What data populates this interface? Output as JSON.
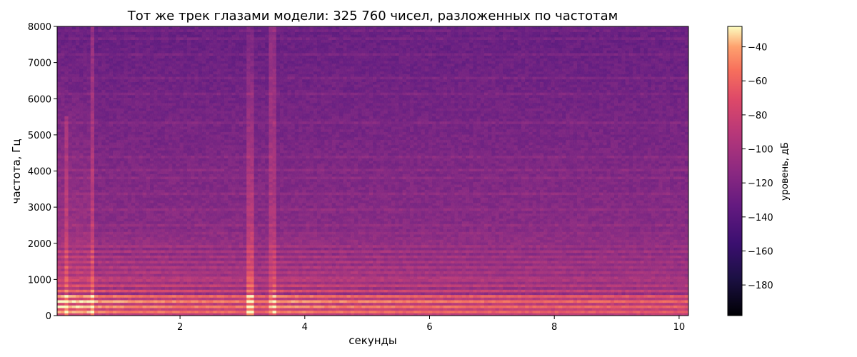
{
  "chart_data": {
    "type": "heatmap",
    "title": "Тот же трек глазами модели: 325 760 чисел, разложенных по частотам",
    "xlabel": "секунды",
    "ylabel": "частота, Гц",
    "xlim": [
      0.03,
      10.15
    ],
    "ylim": [
      0,
      8000
    ],
    "xticks": [
      2,
      4,
      6,
      8,
      10
    ],
    "xtick_labels": [
      "2",
      "4",
      "6",
      "8",
      "10"
    ],
    "yticks": [
      0,
      1000,
      2000,
      3000,
      4000,
      5000,
      6000,
      7000,
      8000
    ],
    "ytick_labels": [
      "0",
      "1000",
      "2000",
      "3000",
      "4000",
      "5000",
      "6000",
      "7000",
      "8000"
    ],
    "colormap": "magma",
    "colorbar": {
      "label": "уровень, дБ",
      "range": [
        -198,
        -28
      ],
      "ticks": [
        -40,
        -60,
        -80,
        -100,
        -120,
        -140,
        -160,
        -180
      ],
      "tick_labels": [
        "−40",
        "−60",
        "−80",
        "−100",
        "−120",
        "−140",
        "−160",
        "−180"
      ]
    },
    "grid": false,
    "events": [
      {
        "time": 0.6,
        "description": "onset"
      },
      {
        "time": 3.12,
        "description": "transient"
      },
      {
        "time": 3.5,
        "description": "onset"
      }
    ]
  }
}
